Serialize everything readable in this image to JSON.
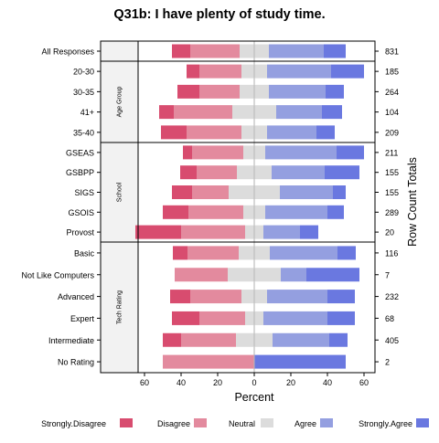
{
  "chart_data": {
    "type": "bar",
    "title": "Q31b: I have plenty of study time.",
    "xlabel": "Percent",
    "ylabel": "",
    "right_axis_label": "Row Count Totals",
    "xlim": [
      -70,
      70
    ],
    "x_ticks": [
      -60,
      -40,
      -20,
      0,
      20,
      40,
      60
    ],
    "x_tick_labels": [
      "60",
      "40",
      "20",
      "0",
      "20",
      "40",
      "60"
    ],
    "legend": [
      {
        "name": "Strongly.Disagree",
        "color": "#d84c6f"
      },
      {
        "name": "Disagree",
        "color": "#e38a9e"
      },
      {
        "name": "Neutral",
        "color": "#dcdcdc"
      },
      {
        "name": "Agree",
        "color": "#949fe0"
      },
      {
        "name": "Strongly.Agree",
        "color": "#6a78e0"
      }
    ],
    "panels": [
      {
        "strip": "",
        "rows": [
          {
            "label": "All Responses",
            "total": "831",
            "values": [
              10,
              27,
              16,
              30,
              12
            ]
          }
        ]
      },
      {
        "strip": "Age Group",
        "rows": [
          {
            "label": "20-30",
            "total": "185",
            "values": [
              7,
              23,
              14,
              35,
              18
            ]
          },
          {
            "label": "30-35",
            "total": "264",
            "values": [
              12,
              22,
              16,
              31,
              10
            ]
          },
          {
            "label": "41+",
            "total": "104",
            "values": [
              8,
              32,
              24,
              25,
              11
            ]
          },
          {
            "label": "35-40",
            "total": "209",
            "values": [
              14,
              30,
              14,
              27,
              10
            ]
          }
        ]
      },
      {
        "strip": "School",
        "rows": [
          {
            "label": "GSEAS",
            "total": "211",
            "values": [
              5,
              28,
              12,
              39,
              15
            ]
          },
          {
            "label": "GSBPP",
            "total": "155",
            "values": [
              9,
              22,
              19,
              29,
              19
            ]
          },
          {
            "label": "SIGS",
            "total": "155",
            "values": [
              11,
              20,
              28,
              29,
              7
            ]
          },
          {
            "label": "GSOIS",
            "total": "289",
            "values": [
              14,
              30,
              12,
              34,
              9
            ]
          },
          {
            "label": "Provost",
            "total": "20",
            "values": [
              25,
              35,
              10,
              20,
              10
            ]
          }
        ]
      },
      {
        "strip": "Tech Rating",
        "rows": [
          {
            "label": "Basic",
            "total": "116",
            "values": [
              8,
              28,
              17,
              37,
              10
            ]
          },
          {
            "label": "Not Like Computers",
            "total": "7",
            "values": [
              0,
              29,
              29,
              14,
              29
            ]
          },
          {
            "label": "Advanced",
            "total": "232",
            "values": [
              11,
              28,
              14,
              33,
              15
            ]
          },
          {
            "label": "Expert",
            "total": "68",
            "values": [
              15,
              25,
              10,
              35,
              15
            ]
          },
          {
            "label": "Intermediate",
            "total": "405",
            "values": [
              10,
              30,
              20,
              31,
              10
            ]
          },
          {
            "label": "No Rating",
            "total": "2",
            "values": [
              0,
              50,
              0,
              0,
              50
            ]
          }
        ]
      }
    ]
  }
}
